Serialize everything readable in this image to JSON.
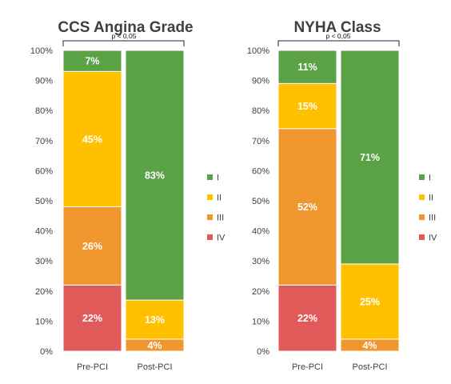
{
  "chart_data": [
    {
      "type": "bar",
      "stacked": true,
      "title": "CCS Angina Grade",
      "annotation": "p < 0,05",
      "categories": [
        "Pre-PCI",
        "Post-PCI"
      ],
      "y_ticks": [
        "0%",
        "10%",
        "20%",
        "30%",
        "40%",
        "50%",
        "60%",
        "70%",
        "80%",
        "90%",
        "100%"
      ],
      "ylim": [
        0,
        100
      ],
      "legend_position": "right",
      "series": [
        {
          "name": "IV",
          "color": "#E05A5A",
          "values": [
            22,
            0
          ],
          "labels": [
            "22%",
            ""
          ]
        },
        {
          "name": "III",
          "color": "#F0962E",
          "values": [
            26,
            4
          ],
          "labels": [
            "26%",
            "4%"
          ]
        },
        {
          "name": "II",
          "color": "#FFC000",
          "values": [
            45,
            13
          ],
          "labels": [
            "45%",
            "13%"
          ]
        },
        {
          "name": "I",
          "color": "#5BA145",
          "values": [
            7,
            83
          ],
          "labels": [
            "7%",
            "83%"
          ]
        }
      ]
    },
    {
      "type": "bar",
      "stacked": true,
      "title": "NYHA Class",
      "annotation": "p < 0,05",
      "categories": [
        "Pre-PCI",
        "Post-PCI"
      ],
      "y_ticks": [
        "0%",
        "10%",
        "20%",
        "30%",
        "40%",
        "50%",
        "60%",
        "70%",
        "80%",
        "90%",
        "100%"
      ],
      "ylim": [
        0,
        100
      ],
      "legend_position": "right",
      "series": [
        {
          "name": "IV",
          "color": "#E05A5A",
          "values": [
            22,
            0
          ],
          "labels": [
            "22%",
            ""
          ]
        },
        {
          "name": "III",
          "color": "#F0962E",
          "values": [
            52,
            4
          ],
          "labels": [
            "52%",
            "4%"
          ]
        },
        {
          "name": "II",
          "color": "#FFC000",
          "values": [
            15,
            25
          ],
          "labels": [
            "15%",
            "25%"
          ]
        },
        {
          "name": "I",
          "color": "#5BA145",
          "values": [
            11,
            71
          ],
          "labels": [
            "11%",
            "71%"
          ]
        }
      ]
    }
  ]
}
